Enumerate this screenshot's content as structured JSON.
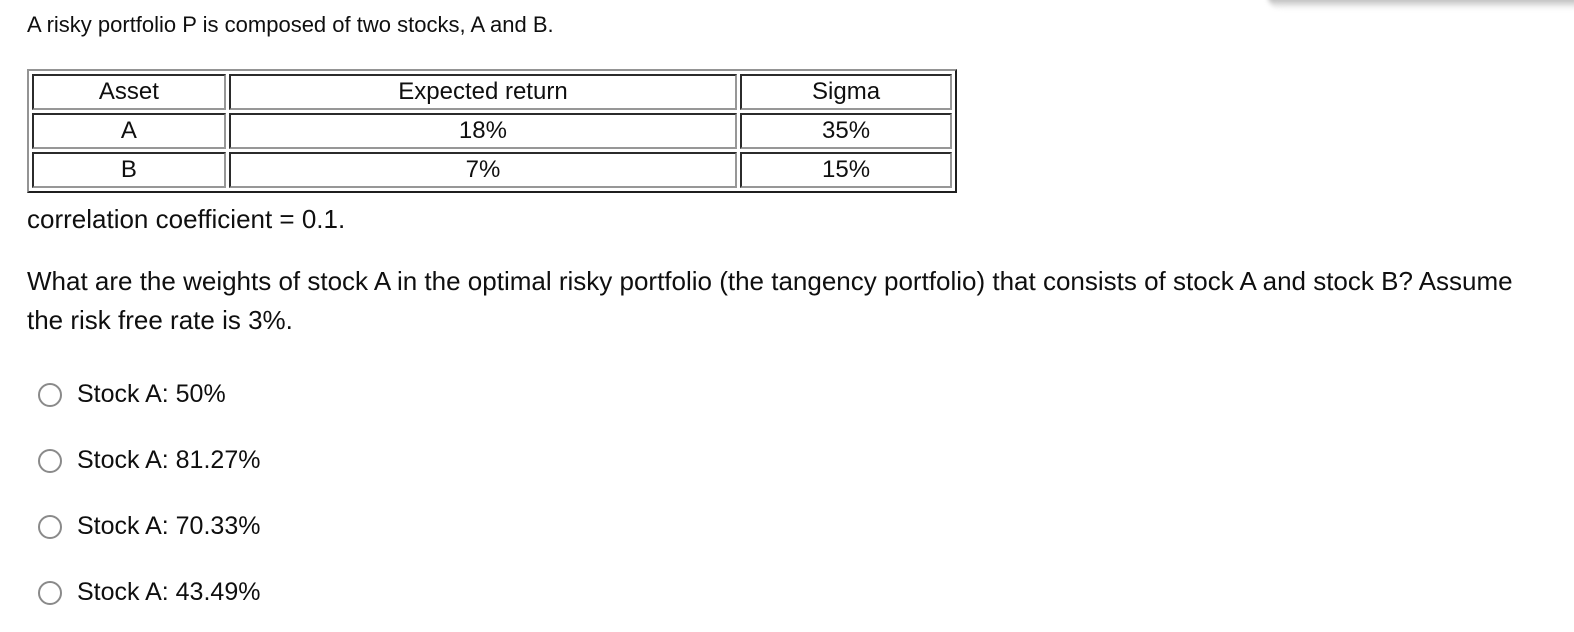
{
  "page": {
    "intro": "A risky portfolio P is composed of two stocks, A and B.",
    "correlation_note": "correlation coefficient = 0.1.",
    "question": "What are the weights of stock A in the optimal risky portfolio (the tangency portfolio) that consists of stock A and stock B? Assume the risk free rate is 3%."
  },
  "table": {
    "headers": [
      "Asset",
      "Expected return",
      "Sigma"
    ],
    "rows": [
      {
        "asset": "A",
        "expected_return": "18%",
        "sigma": "35%"
      },
      {
        "asset": "B",
        "expected_return": "7%",
        "sigma": "15%"
      }
    ]
  },
  "options": [
    {
      "label": "Stock A: 50%",
      "selected": false
    },
    {
      "label": "Stock A: 81.27%",
      "selected": false
    },
    {
      "label": "Stock A: 70.33%",
      "selected": false
    },
    {
      "label": "Stock A: 43.49%",
      "selected": false
    }
  ],
  "colors": {
    "background": "#ffffff",
    "text": "#0f0f0f",
    "table_border_dark": "#2b2b2b",
    "table_border_light": "#979797",
    "radio_border": "#8a8a8a"
  }
}
